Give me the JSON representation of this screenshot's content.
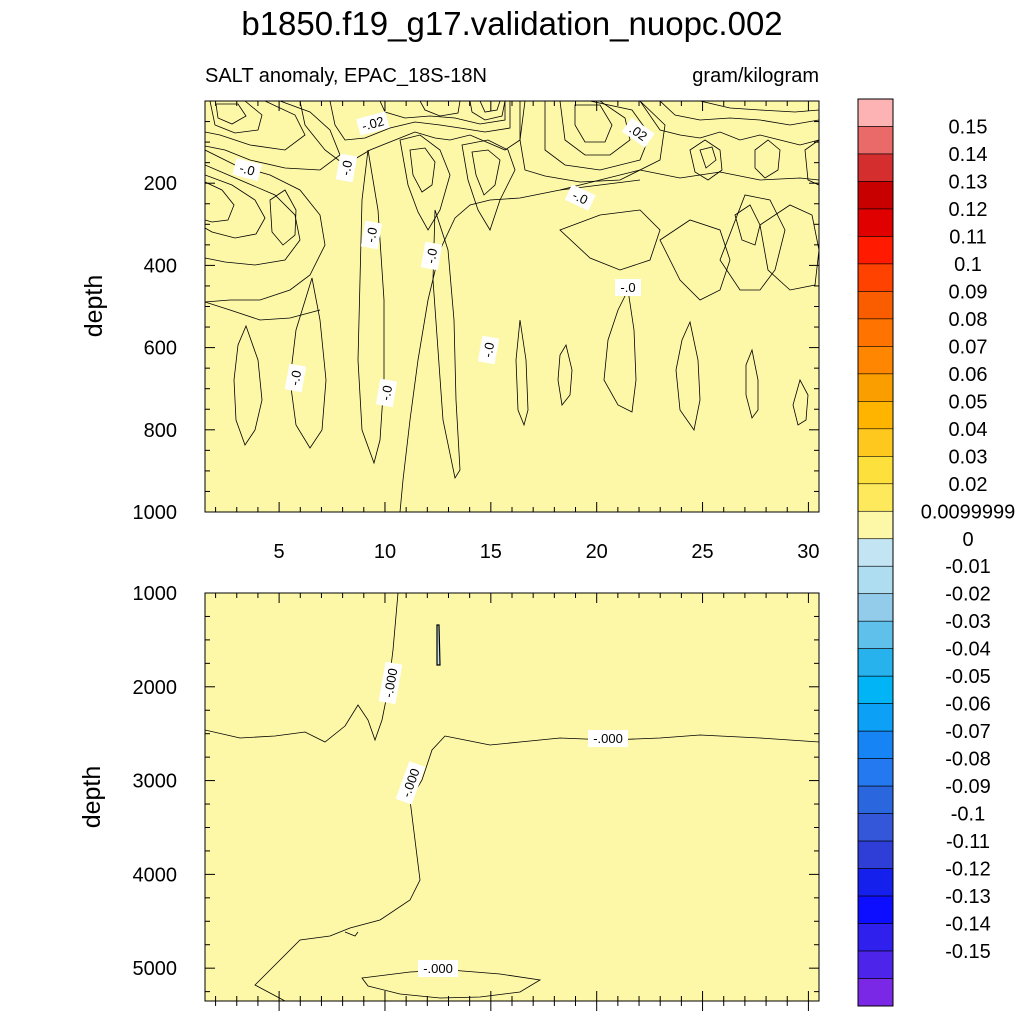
{
  "chart_data": {
    "type": "heatmap",
    "title": "b1850.f19_g17.validation_nuopc.002",
    "left_subtitle": "SALT anomaly, EPAC_18S-18N",
    "right_subtitle": "gram/kilogram",
    "colors": {
      "pos_light": "#fdf7a8",
      "neg_light": "#c3e4f3",
      "neg_mid": "#9bd1ee",
      "neg_deep": "#2f7fd0",
      "neg_darkest": "#1a1aa6",
      "pos_mid": "#fbd33a",
      "pos_deep": "#f5a623",
      "line": "#000000"
    },
    "panels": [
      {
        "name": "upper",
        "ylabel": "depth",
        "ylim": [
          0,
          1000
        ],
        "y_ticks": [
          "200",
          "400",
          "600",
          "800",
          "1000"
        ],
        "y_tick_values": [
          200,
          400,
          600,
          800,
          1000
        ],
        "xlim": [
          1.5,
          30.5
        ],
        "x_ticks": [
          "5",
          "10",
          "15",
          "20",
          "25",
          "30"
        ],
        "x_tick_values": [
          5,
          10,
          15,
          20,
          25,
          30
        ],
        "contour_labels": [
          "-.02",
          "-.0",
          "-.0",
          "-.0",
          "-.0",
          "-.0",
          "-.0",
          "-.0",
          "-.0",
          "-.0",
          ".02"
        ]
      },
      {
        "name": "lower",
        "ylabel": "depth",
        "ylim": [
          1000,
          5350
        ],
        "y_ticks": [
          "1000",
          "2000",
          "3000",
          "4000",
          "5000"
        ],
        "y_tick_values": [
          1000,
          2000,
          3000,
          4000,
          5000
        ],
        "xlim": [
          1.5,
          30.5
        ],
        "contour_labels": [
          "-.000",
          "-.000",
          "-.000",
          "-.000"
        ]
      }
    ],
    "colorbar": {
      "colors": [
        "#fdb3b3",
        "#ea6a6a",
        "#d42e2e",
        "#c80000",
        "#e00000",
        "#ff1a00",
        "#ff4200",
        "#fa5c00",
        "#ff7400",
        "#ff8600",
        "#fa9e00",
        "#ffb400",
        "#ffc81e",
        "#fde03c",
        "#fee95c",
        "#fdf7a8",
        "#c3e4f3",
        "#aedcf0",
        "#93cbea",
        "#60c0ec",
        "#27b2ee",
        "#00b4f6",
        "#0ca0f7",
        "#1784f5",
        "#2479f0",
        "#2a66de",
        "#3357d8",
        "#2e3ed6",
        "#1620ec",
        "#0d0dff",
        "#3020ee",
        "#4d24ea",
        "#7a28e6"
      ],
      "labels": [
        "0.15",
        "0.14",
        "0.13",
        "0.12",
        "0.11",
        "0.1",
        "0.09",
        "0.08",
        "0.07",
        "0.06",
        "0.05",
        "0.04",
        "0.03",
        "0.02",
        "0.0099999",
        "0",
        "-0.01",
        "-0.02",
        "-0.03",
        "-0.04",
        "-0.05",
        "-0.06",
        "-0.07",
        "-0.08",
        "-0.09",
        "-0.1",
        "-0.11",
        "-0.12",
        "-0.13",
        "-0.14",
        "-0.15"
      ]
    }
  }
}
